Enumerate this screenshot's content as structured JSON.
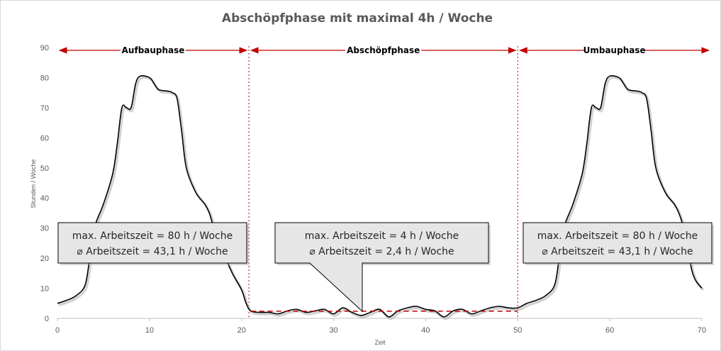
{
  "chart_data": {
    "type": "line",
    "title": "Abschöpfphase mit maximal 4h / Woche",
    "xlabel": "Zeit",
    "ylabel": "Stunden / Woche",
    "xlim": [
      0,
      70
    ],
    "ylim": [
      0,
      90
    ],
    "x_ticks": [
      0,
      10,
      20,
      30,
      40,
      50,
      60,
      70
    ],
    "y_ticks": [
      0,
      10,
      20,
      30,
      40,
      50,
      60,
      70,
      80,
      90
    ],
    "grid": false,
    "colors": {
      "line": "#000000",
      "shadow": "#bfbfbf",
      "accent": "#c00000",
      "callout_fill": "#e7e6e6",
      "axis": "#bfbfbf",
      "text": "#595959"
    },
    "series": [
      {
        "values": [
          [
            0,
            5
          ],
          [
            1,
            6
          ],
          [
            2,
            7.5
          ],
          [
            3,
            11
          ],
          [
            3.5,
            20
          ],
          [
            4,
            30
          ],
          [
            5,
            38
          ],
          [
            6,
            48
          ],
          [
            6.5,
            58
          ],
          [
            7,
            70
          ],
          [
            7.5,
            70
          ],
          [
            8,
            70
          ],
          [
            8.5,
            78
          ],
          [
            9,
            80.5
          ],
          [
            10,
            80
          ],
          [
            10.5,
            78
          ],
          [
            11,
            76
          ],
          [
            12,
            75.5
          ],
          [
            12.5,
            75
          ],
          [
            13,
            73
          ],
          [
            13.5,
            62
          ],
          [
            14,
            50
          ],
          [
            15,
            42
          ],
          [
            16,
            38
          ],
          [
            16.5,
            35
          ],
          [
            17,
            30
          ],
          [
            18,
            22
          ],
          [
            19,
            15
          ],
          [
            20,
            9.5
          ],
          [
            20.5,
            5
          ],
          [
            21,
            2.5
          ],
          [
            22,
            2
          ],
          [
            23,
            2
          ],
          [
            24,
            1.5
          ],
          [
            25,
            2.5
          ],
          [
            26,
            3
          ],
          [
            27,
            2
          ],
          [
            28,
            2.5
          ],
          [
            29,
            3
          ],
          [
            30,
            1.5
          ],
          [
            31,
            3.5
          ],
          [
            32,
            2
          ],
          [
            33,
            1
          ],
          [
            34,
            2
          ],
          [
            35,
            3
          ],
          [
            36,
            0.5
          ],
          [
            37,
            2.5
          ],
          [
            38,
            3.5
          ],
          [
            39,
            4
          ],
          [
            40,
            3
          ],
          [
            41,
            2.5
          ],
          [
            42,
            0.5
          ],
          [
            43,
            2.5
          ],
          [
            44,
            3
          ],
          [
            45,
            1.5
          ],
          [
            46,
            2.5
          ],
          [
            47,
            3.5
          ],
          [
            48,
            4
          ],
          [
            49,
            3.5
          ],
          [
            50,
            3.5
          ],
          [
            51,
            5
          ],
          [
            52,
            6
          ],
          [
            53,
            7.5
          ],
          [
            54,
            11
          ],
          [
            54.5,
            20
          ],
          [
            55,
            30
          ],
          [
            56,
            38
          ],
          [
            57,
            48
          ],
          [
            57.5,
            58
          ],
          [
            58,
            70
          ],
          [
            58.5,
            70
          ],
          [
            59,
            70
          ],
          [
            59.5,
            78
          ],
          [
            60,
            80.5
          ],
          [
            61,
            80
          ],
          [
            61.5,
            78
          ],
          [
            62,
            76
          ],
          [
            63,
            75.5
          ],
          [
            63.5,
            75
          ],
          [
            64,
            73
          ],
          [
            64.5,
            62
          ],
          [
            65,
            50
          ],
          [
            66,
            42
          ],
          [
            67,
            38
          ],
          [
            67.5,
            35
          ],
          [
            68,
            30
          ],
          [
            69,
            15
          ],
          [
            70,
            10
          ]
        ]
      }
    ],
    "average_line": {
      "x": [
        21,
        50
      ],
      "y": 2.4
    },
    "phase_boundaries": [
      20.8,
      50
    ],
    "phases": [
      {
        "label": "Aufbauphase",
        "x_start": 0,
        "x_end": 20.8
      },
      {
        "label": "Abschöpfphase",
        "x_start": 20.8,
        "x_end": 50
      },
      {
        "label": "Umbauphase",
        "x_start": 50,
        "x_end": 71
      }
    ],
    "callouts": [
      {
        "line1": "max. Arbeitszeit = 80 h / Woche",
        "line2": "⌀ Arbeitszeit = 43,1 h / Woche"
      },
      {
        "line1": "max. Arbeitszeit = 4 h / Woche",
        "line2": "⌀ Arbeitszeit = 2,4 h / Woche"
      },
      {
        "line1": "max. Arbeitszeit = 80 h / Woche",
        "line2": "⌀ Arbeitszeit = 43,1 h / Woche"
      }
    ]
  }
}
